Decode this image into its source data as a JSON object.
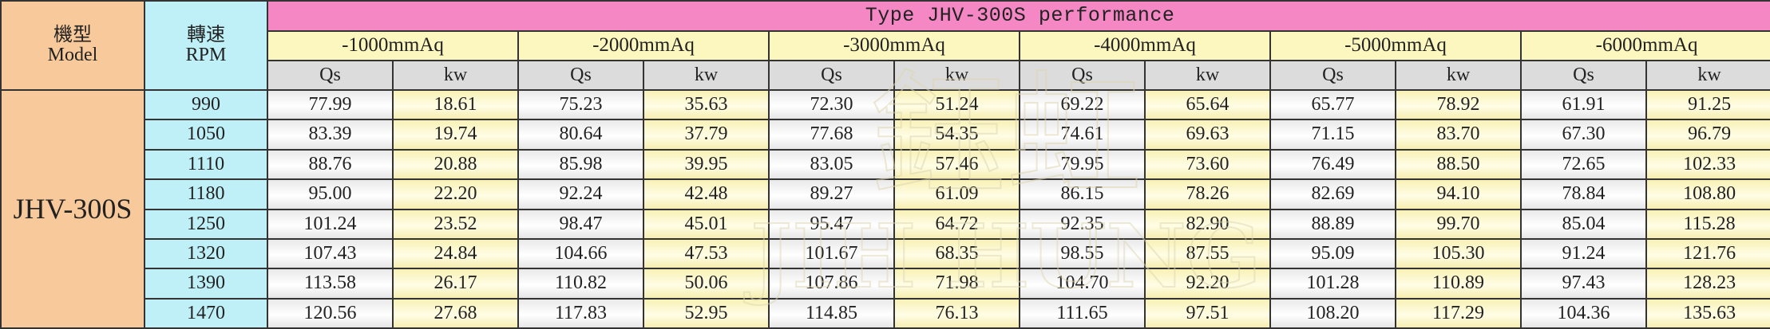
{
  "header": {
    "model_label": [
      "機型",
      "Model"
    ],
    "rpm_label": [
      "轉速",
      "RPM"
    ],
    "title": "Type JHV-300S performance",
    "pressures": [
      "-1000mmAq",
      "-2000mmAq",
      "-3000mmAq",
      "-4000mmAq",
      "-5000mmAq",
      "-6000mmAq"
    ],
    "sub_qs": "Qs",
    "sub_kw": "kw"
  },
  "model": "JHV-300S",
  "rows": [
    {
      "rpm": "990",
      "vals": [
        "77.99",
        "18.61",
        "75.23",
        "35.63",
        "72.30",
        "51.24",
        "69.22",
        "65.64",
        "65.77",
        "78.92",
        "61.91",
        "91.25"
      ]
    },
    {
      "rpm": "1050",
      "vals": [
        "83.39",
        "19.74",
        "80.64",
        "37.79",
        "77.68",
        "54.35",
        "74.61",
        "69.63",
        "71.15",
        "83.70",
        "67.30",
        "96.79"
      ]
    },
    {
      "rpm": "1110",
      "vals": [
        "88.76",
        "20.88",
        "85.98",
        "39.95",
        "83.05",
        "57.46",
        "79.95",
        "73.60",
        "76.49",
        "88.50",
        "72.65",
        "102.33"
      ]
    },
    {
      "rpm": "1180",
      "vals": [
        "95.00",
        "22.20",
        "92.24",
        "42.48",
        "89.27",
        "61.09",
        "86.15",
        "78.26",
        "82.69",
        "94.10",
        "78.84",
        "108.80"
      ]
    },
    {
      "rpm": "1250",
      "vals": [
        "101.24",
        "23.52",
        "98.47",
        "45.01",
        "95.47",
        "64.72",
        "92.35",
        "82.90",
        "88.89",
        "99.70",
        "85.04",
        "115.28"
      ]
    },
    {
      "rpm": "1320",
      "vals": [
        "107.43",
        "24.84",
        "104.66",
        "47.53",
        "101.67",
        "68.35",
        "98.55",
        "87.55",
        "95.09",
        "105.30",
        "91.24",
        "121.76"
      ]
    },
    {
      "rpm": "1390",
      "vals": [
        "113.58",
        "26.17",
        "110.82",
        "50.06",
        "107.86",
        "71.98",
        "104.70",
        "92.20",
        "101.28",
        "110.89",
        "97.43",
        "128.23"
      ]
    },
    {
      "rpm": "1470",
      "vals": [
        "120.56",
        "27.68",
        "117.83",
        "52.95",
        "114.85",
        "76.13",
        "111.65",
        "97.51",
        "108.20",
        "117.29",
        "104.36",
        "135.63"
      ]
    }
  ],
  "watermark": {
    "chinese": "鈺虹",
    "latin": "JIH HUNG"
  }
}
